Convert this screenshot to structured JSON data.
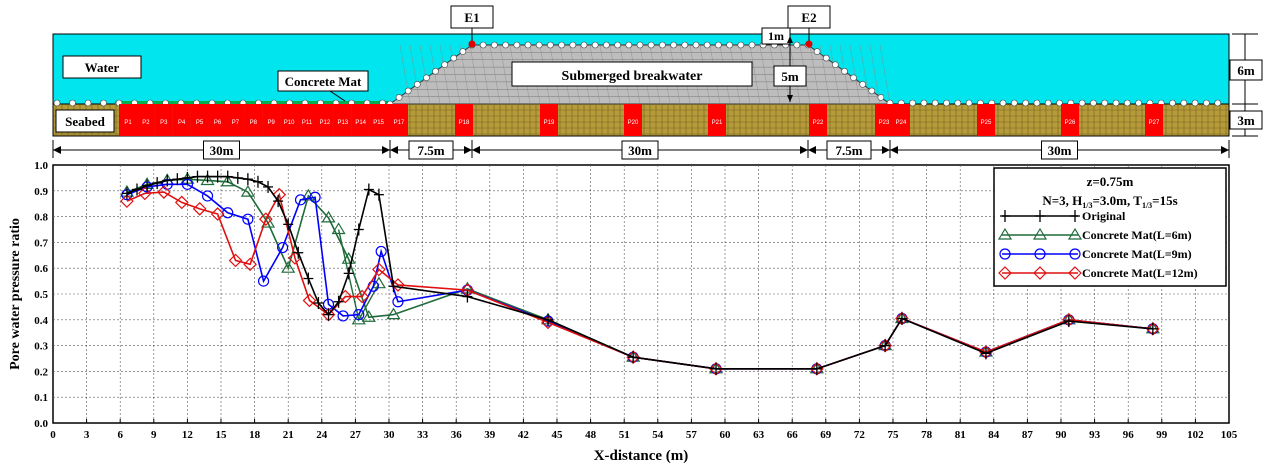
{
  "diagram": {
    "gauges": [
      "E1",
      "E2"
    ],
    "labels": {
      "water": "Water",
      "seabed": "Seabed",
      "concrete_mat": "Concrete Mat",
      "breakwater": "Submerged breakwater"
    },
    "dims": {
      "top": "1m",
      "crest": "5m",
      "depth": "6m",
      "seabed": "3m"
    },
    "spans": [
      "30m",
      "7.5m",
      "30m",
      "7.5m",
      "30m"
    ],
    "sensors": [
      "P1",
      "P2",
      "P3",
      "P4",
      "P5",
      "P6",
      "P7",
      "P8",
      "P9",
      "P10",
      "P11",
      "P12",
      "P13",
      "P14",
      "P15",
      "P16",
      "P17",
      "P18",
      "P19",
      "P20",
      "P21",
      "P22",
      "P23",
      "P24",
      "P25",
      "P26",
      "P27"
    ],
    "colors": {
      "water": "#00e5ee",
      "seabed": "#b59b3a",
      "sensor": "#ff0000",
      "breakwater": "#bdbdbd",
      "mat": "#00b050"
    }
  },
  "chart_data": {
    "type": "line",
    "xlabel": "X-distance (m)",
    "ylabel": "Pore water pressure ratio",
    "xlim": [
      0,
      105
    ],
    "ylim": [
      0,
      1.0
    ],
    "xticks": [
      "0",
      "3",
      "6",
      "9",
      "12",
      "15",
      "18",
      "21",
      "24",
      "27",
      "30",
      "33",
      "36",
      "39",
      "42",
      "45",
      "48",
      "51",
      "54",
      "57",
      "60",
      "63",
      "66",
      "69",
      "72",
      "75",
      "78",
      "81",
      "84",
      "87",
      "90",
      "93",
      "96",
      "99",
      "102",
      "105"
    ],
    "yticks": [
      "0.0",
      "0.1",
      "0.2",
      "0.3",
      "0.4",
      "0.5",
      "0.6",
      "0.7",
      "0.8",
      "0.9",
      "1.0"
    ],
    "grid": true,
    "legend_position": "top-right",
    "annotation": {
      "z": "z=0.75m",
      "cond_prefix": "N=3, H",
      "cond_sub1": "1/3",
      "cond_mid": "=3.0m, T",
      "cond_sub2": "1/3",
      "cond_suffix": "=15s"
    },
    "series": [
      {
        "name": "Original",
        "color": "#000000",
        "marker": "plus",
        "x": [
          6.6,
          7.5,
          8.4,
          9.3,
          10.2,
          11.1,
          12,
          12.9,
          13.8,
          14.7,
          15.6,
          16.5,
          17.4,
          18.3,
          19.2,
          20.1,
          21,
          21.9,
          22.8,
          23.7,
          24.6,
          25.5,
          26.4,
          27.3,
          28.2,
          29.1,
          30.4,
          37,
          44.2,
          51.8,
          59.2,
          68.2,
          74.3,
          75.8,
          83.3,
          90.7,
          98.2
        ],
        "y": [
          0.89,
          0.905,
          0.92,
          0.93,
          0.94,
          0.945,
          0.95,
          0.955,
          0.955,
          0.955,
          0.955,
          0.95,
          0.945,
          0.935,
          0.915,
          0.86,
          0.77,
          0.66,
          0.56,
          0.465,
          0.42,
          0.47,
          0.58,
          0.75,
          0.905,
          0.885,
          0.53,
          0.49,
          0.4,
          0.255,
          0.21,
          0.21,
          0.3,
          0.405,
          0.27,
          0.395,
          0.365
        ]
      },
      {
        "name": "Concrete Mat(L=6m)",
        "color": "#1f6b3a",
        "marker": "triangle",
        "x": [
          6.6,
          8.4,
          10.2,
          12,
          13.8,
          15.6,
          17.4,
          19.2,
          21,
          22.8,
          24.6,
          26.4,
          28.2,
          30.4,
          37,
          44.2,
          51.8,
          59.2,
          68.2,
          74.3,
          75.8,
          83.3,
          90.7,
          98.2
        ],
        "y": [
          0.895,
          0.925,
          0.94,
          0.945,
          0.94,
          0.935,
          0.895,
          0.775,
          0.6,
          0.88,
          0.795,
          0.635,
          0.41,
          0.42,
          0.52,
          0.4,
          0.255,
          0.21,
          0.21,
          0.3,
          0.405,
          0.275,
          0.4,
          0.365
        ],
        "x2": [
          25.5,
          27.3,
          29.1
        ],
        "y2": [
          0.75,
          0.4,
          0.54
        ]
      },
      {
        "name": "Concrete Mat(L=9m)",
        "color": "#0000ff",
        "marker": "circle",
        "x": [
          6.6,
          8.4,
          10.2,
          12,
          13.8,
          15.6,
          17.4,
          18.8,
          20.5,
          22.1,
          23.4,
          24.6,
          25.9,
          27.3,
          28.6,
          29.3,
          30.8,
          37,
          44.2,
          51.8,
          59.2,
          68.2,
          74.3,
          75.8,
          83.3,
          90.7,
          98.2
        ],
        "y": [
          0.885,
          0.915,
          0.925,
          0.925,
          0.88,
          0.815,
          0.79,
          0.55,
          0.68,
          0.865,
          0.875,
          0.46,
          0.415,
          0.42,
          0.53,
          0.665,
          0.47,
          0.515,
          0.395,
          0.255,
          0.21,
          0.21,
          0.3,
          0.405,
          0.275,
          0.4,
          0.365
        ]
      },
      {
        "name": "Concrete Mat(L=12m)",
        "color": "#e01010",
        "marker": "diamond",
        "x": [
          6.6,
          8.2,
          9.9,
          11.5,
          13.1,
          14.7,
          16.3,
          17.6,
          19.0,
          20.2,
          21.6,
          22.9,
          24.6,
          26.1,
          27.6,
          29.1,
          30.8,
          37,
          44.2,
          51.8,
          59.2,
          68.2,
          74.3,
          75.8,
          83.3,
          90.7,
          98.2
        ],
        "y": [
          0.86,
          0.89,
          0.895,
          0.855,
          0.83,
          0.81,
          0.63,
          0.615,
          0.79,
          0.885,
          0.64,
          0.475,
          0.42,
          0.49,
          0.49,
          0.595,
          0.535,
          0.515,
          0.39,
          0.255,
          0.21,
          0.21,
          0.3,
          0.405,
          0.275,
          0.4,
          0.365
        ]
      }
    ]
  }
}
